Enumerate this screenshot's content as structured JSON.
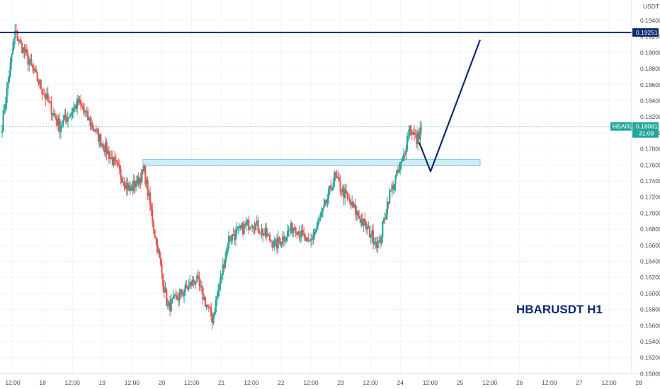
{
  "chart_data": {
    "type": "candlestick",
    "symbol": "HBARUSDT",
    "title": "HBARUSDT H1",
    "currency_label": "USDT",
    "ylim": [
      0.149,
      0.1958
    ],
    "y_ticks": [
      "0.19400",
      "0.19200",
      "0.19000",
      "0.18800",
      "0.18600",
      "0.18400",
      "0.18200",
      "0.18000",
      "0.17800",
      "0.17600",
      "0.17400",
      "0.17200",
      "0.17000",
      "0.16800",
      "0.16600",
      "0.16400",
      "0.16200",
      "0.16000",
      "0.15800",
      "0.15600",
      "0.15400",
      "0.15200",
      "0.15000"
    ],
    "x_ticks": [
      "12:00",
      "18",
      "12:00",
      "19",
      "12:00",
      "20",
      "12:00",
      "21",
      "12:00",
      "22",
      "12:00",
      "23",
      "12:00",
      "24",
      "12:00",
      "25",
      "12:00",
      "26",
      "12:00",
      "27",
      "12:00",
      "28"
    ],
    "grid": true,
    "resistance_level": {
      "price": 0.19251,
      "label": "0.19251",
      "color": "#0f2a6e"
    },
    "current_price": {
      "label": "0.18081",
      "symbol_label": "HBARUSDT",
      "countdown": "31:09",
      "price": 0.18081,
      "color": "#26a69a"
    },
    "demand_zone": {
      "from_time": "19 18:00",
      "to_time": "25 12:00",
      "low": 0.1759,
      "high": 0.1767
    },
    "projection_path": [
      {
        "time": "24 19:00",
        "price": 0.1788
      },
      {
        "time": "25 03:00",
        "price": 0.1752
      },
      {
        "time": "25 12:00",
        "price": 0.1916
      }
    ],
    "segments": [
      {
        "start": 0.18,
        "end": 0.1925,
        "steps": 12
      },
      {
        "start": 0.1925,
        "end": 0.1808,
        "steps": 38
      },
      {
        "start": 0.1808,
        "end": 0.1838,
        "steps": 16
      },
      {
        "start": 0.1838,
        "end": 0.1728,
        "steps": 44
      },
      {
        "start": 0.1728,
        "end": 0.1752,
        "steps": 12
      },
      {
        "start": 0.1752,
        "end": 0.1582,
        "steps": 20
      },
      {
        "start": 0.1582,
        "end": 0.1618,
        "steps": 24
      },
      {
        "start": 0.1618,
        "end": 0.1568,
        "steps": 14
      },
      {
        "start": 0.1568,
        "end": 0.1668,
        "steps": 14
      },
      {
        "start": 0.1668,
        "end": 0.169,
        "steps": 20
      },
      {
        "start": 0.169,
        "end": 0.166,
        "steps": 20
      },
      {
        "start": 0.166,
        "end": 0.1685,
        "steps": 16
      },
      {
        "start": 0.1685,
        "end": 0.166,
        "steps": 12
      },
      {
        "start": 0.166,
        "end": 0.17,
        "steps": 12
      },
      {
        "start": 0.17,
        "end": 0.1745,
        "steps": 10
      },
      {
        "start": 0.1745,
        "end": 0.1715,
        "steps": 12
      },
      {
        "start": 0.1715,
        "end": 0.168,
        "steps": 16
      },
      {
        "start": 0.168,
        "end": 0.166,
        "steps": 10
      },
      {
        "start": 0.166,
        "end": 0.172,
        "steps": 8
      },
      {
        "start": 0.172,
        "end": 0.1765,
        "steps": 12
      },
      {
        "start": 0.1765,
        "end": 0.1808,
        "steps": 6
      },
      {
        "start": 0.1808,
        "end": 0.179,
        "steps": 6
      },
      {
        "start": 0.179,
        "end": 0.1808,
        "steps": 4
      }
    ],
    "up_color": "#26a69a",
    "down_color": "#ef5350"
  }
}
